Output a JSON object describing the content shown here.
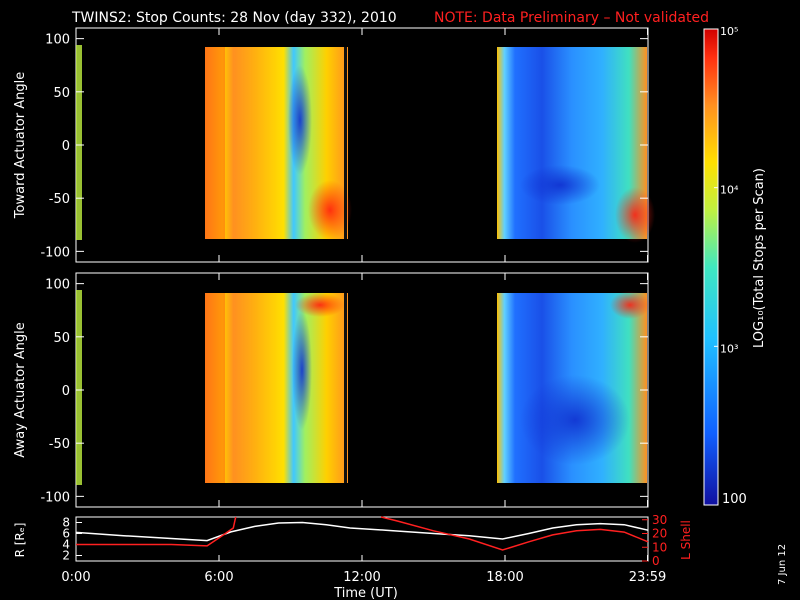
{
  "title": "TWINS2: Stop Counts: 28 Nov (day 332), 2010",
  "note": "NOTE: Data Preliminary – Not validated",
  "footer_date": "7 Jun 12",
  "colorbar": {
    "label": "LOG₁₀(Total Stops per Scan)",
    "ticks": [
      "100",
      "10³",
      "10⁴",
      "10⁵"
    ],
    "scale": "log",
    "range": [
      100,
      100000
    ],
    "colors": [
      "#1010a0",
      "#1060ff",
      "#20c0ff",
      "#40e8c0",
      "#c0f040",
      "#ffe000",
      "#ff9020",
      "#ff3010",
      "#d00000"
    ]
  },
  "chart_data": [
    {
      "type": "heatmap",
      "ylabel": "Toward Actuator Angle",
      "ylim": [
        -110,
        110
      ],
      "yticks": [
        "100",
        "50",
        "0",
        "-50",
        "-100"
      ],
      "xlim": [
        0,
        24
      ],
      "data_windows_ut": [
        [
          5.5,
          11.8
        ],
        [
          17.9,
          24.0
        ]
      ]
    },
    {
      "type": "heatmap",
      "ylabel": "Away Actuator Angle",
      "ylim": [
        -110,
        110
      ],
      "yticks": [
        "100",
        "50",
        "0",
        "-50",
        "-100"
      ],
      "xlim": [
        0,
        24
      ],
      "data_windows_ut": [
        [
          5.5,
          11.8
        ],
        [
          17.9,
          24.0
        ]
      ]
    },
    {
      "type": "line",
      "ylabel": "R [Rₑ]",
      "ylabel2": "L Shell",
      "yticks": [
        "8",
        "6",
        "4",
        "2"
      ],
      "yticks2": [
        "30",
        "20",
        "10",
        "0"
      ],
      "ylim": [
        1,
        9
      ],
      "ylim2": [
        0,
        32
      ],
      "xlabel": "Time (UT)",
      "xticks": [
        "0:00",
        "6:00",
        "12:00",
        "18:00",
        "23:59"
      ],
      "xtick_values": [
        0,
        6,
        12,
        18,
        23.98
      ],
      "series": [
        {
          "color": "#ffffff",
          "x": [
            0,
            2,
            4,
            5.5,
            6.5,
            7.5,
            8.5,
            9.5,
            10.5,
            11.5,
            13,
            15,
            16.5,
            17.9,
            19,
            20,
            21,
            22,
            23,
            24
          ],
          "y": [
            6.2,
            5.6,
            5.1,
            4.7,
            6.3,
            7.3,
            7.9,
            8.0,
            7.6,
            7.0,
            6.6,
            6.0,
            5.6,
            5.0,
            6.0,
            7.0,
            7.6,
            7.8,
            7.6,
            6.6
          ]
        },
        {
          "color": "#ff2020",
          "y_axis": "right",
          "x": [
            0,
            2,
            4,
            5.5,
            6.1,
            6.6,
            6.7,
            null,
            12.8,
            13.5,
            15,
            16.5,
            17.9,
            19,
            20,
            21,
            22,
            23,
            24
          ],
          "y": [
            12,
            12,
            12,
            11,
            18,
            24,
            32,
            null,
            32,
            29,
            22,
            16,
            8,
            14,
            19,
            22,
            23,
            21,
            14
          ]
        }
      ]
    }
  ]
}
